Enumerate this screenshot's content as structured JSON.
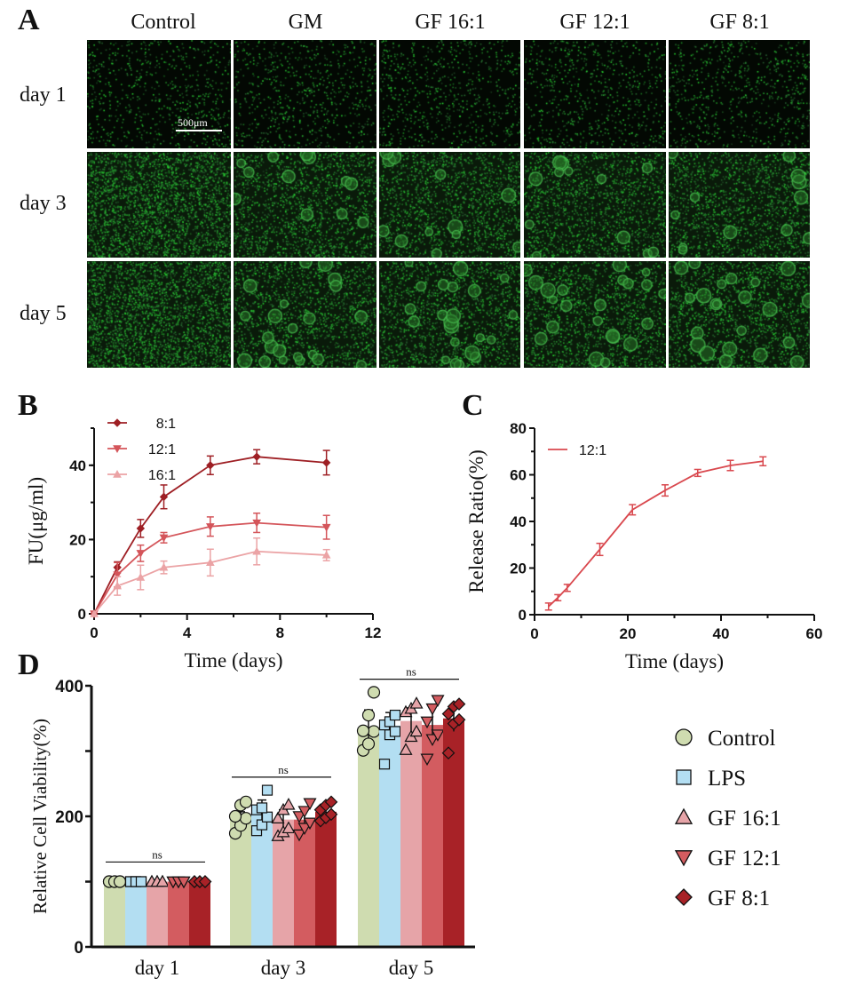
{
  "panel_a": {
    "label": "A",
    "columns": [
      "Control",
      "GM",
      "GF 16:1",
      "GF 12:1",
      "GF 8:1"
    ],
    "rows": [
      "day 1",
      "day 3",
      "day 5"
    ],
    "scale_bar": "500μm"
  },
  "chart_data": [
    {
      "panel": "B",
      "type": "line",
      "xlabel": "Time (days)",
      "ylabel": "FU(μg/ml)",
      "xlim": [
        0,
        12
      ],
      "ylim": [
        0,
        50
      ],
      "xticks": [
        0,
        4,
        8,
        12
      ],
      "yticks": [
        0,
        20,
        40
      ],
      "legend_position": "top-left",
      "x": [
        0,
        1,
        2,
        3,
        5,
        7,
        10
      ],
      "series": [
        {
          "name": "8:1",
          "marker": "diamond",
          "color": "#9e1f24",
          "values": [
            0,
            12.5,
            23,
            31.5,
            40,
            42.3,
            40.7
          ],
          "errors": [
            0,
            1.5,
            2.4,
            3.2,
            2.5,
            1.9,
            3.3
          ]
        },
        {
          "name": "12:1",
          "marker": "triangle-down",
          "color": "#d4555a",
          "values": [
            0,
            10.5,
            16.3,
            20.5,
            23.5,
            24.5,
            23.3
          ],
          "errors": [
            0,
            3.3,
            2.2,
            1.4,
            2.6,
            2.6,
            3.2
          ]
        },
        {
          "name": "16:1",
          "marker": "triangle-up",
          "color": "#eba3a5",
          "values": [
            0,
            7.5,
            9.8,
            12.5,
            13.8,
            16.8,
            15.8
          ],
          "errors": [
            0,
            2.5,
            3.3,
            1.7,
            3.6,
            3.6,
            1.5
          ]
        }
      ]
    },
    {
      "panel": "C",
      "type": "line",
      "xlabel": "Time (days)",
      "ylabel": "Release Ratio(%)",
      "xlim": [
        0,
        60
      ],
      "ylim": [
        0,
        80
      ],
      "xticks": [
        0,
        20,
        40,
        60
      ],
      "yticks": [
        0,
        20,
        40,
        60,
        80
      ],
      "legend_position": "top-left",
      "x": [
        3,
        5,
        7,
        14,
        21,
        28,
        35,
        42,
        49
      ],
      "series": [
        {
          "name": "12:1",
          "color": "#d9484e",
          "values": [
            3.5,
            7.3,
            11.5,
            28,
            45,
            53.3,
            60.8,
            64,
            65.8
          ],
          "errors": [
            1.5,
            1.3,
            1.5,
            2.6,
            2.2,
            2.4,
            1.5,
            2.2,
            1.9
          ]
        }
      ]
    },
    {
      "panel": "D",
      "type": "bar",
      "ylabel": "Relative Cell Viability(%)",
      "ylim": [
        0,
        400
      ],
      "yticks": [
        0,
        200,
        400
      ],
      "categories": [
        "day 1",
        "day 3",
        "day 5"
      ],
      "significance": [
        "ns",
        "ns",
        "ns"
      ],
      "legend_position": "right",
      "series": [
        {
          "name": "Control",
          "marker": "circle",
          "color": "#cfdcb0",
          "values": [
            100,
            197,
            333
          ],
          "errors": [
            0,
            10,
            30
          ],
          "points": [
            [
              100,
              100,
              100,
              100,
              100,
              100
            ],
            [
              174,
              186,
              197,
              200,
              217,
              222
            ],
            [
              301,
              311,
              330,
              331,
              355,
              390
            ]
          ]
        },
        {
          "name": "LPS",
          "marker": "square",
          "color": "#b3def2",
          "values": [
            100,
            205,
            339
          ],
          "errors": [
            0,
            20,
            20
          ],
          "points": [
            [
              100,
              100,
              100,
              100,
              100,
              100
            ],
            [
              178,
              187,
              199,
              210,
              213,
              240
            ],
            [
              280,
              325,
              330,
              340,
              345,
              355
            ]
          ]
        },
        {
          "name": "GF 16:1",
          "marker": "triangle-up",
          "color": "#e6a4a8",
          "values": [
            100,
            195,
            346
          ],
          "errors": [
            0,
            15,
            20
          ],
          "points": [
            [
              100,
              100,
              100,
              100,
              100,
              100
            ],
            [
              170,
              176,
              182,
              197,
              210,
              218
            ],
            [
              302,
              322,
              330,
              360,
              365,
              373
            ]
          ]
        },
        {
          "name": "GF 12:1",
          "marker": "triangle-down",
          "color": "#d35c60",
          "values": [
            100,
            195,
            340
          ],
          "errors": [
            0,
            15,
            30
          ],
          "points": [
            [
              100,
              100,
              100,
              100,
              100,
              100
            ],
            [
              172,
              182,
              190,
              200,
              208,
              220
            ],
            [
              288,
              318,
              325,
              345,
              365,
              378
            ]
          ]
        },
        {
          "name": "GF 8:1",
          "marker": "diamond",
          "color": "#a82227",
          "values": [
            100,
            207,
            350
          ],
          "errors": [
            0,
            10,
            20
          ],
          "points": [
            [
              100,
              100,
              100,
              100,
              100,
              100
            ],
            [
              193,
              198,
              203,
              210,
              217,
              222
            ],
            [
              297,
              342,
              348,
              357,
              368,
              372
            ]
          ]
        }
      ]
    }
  ]
}
